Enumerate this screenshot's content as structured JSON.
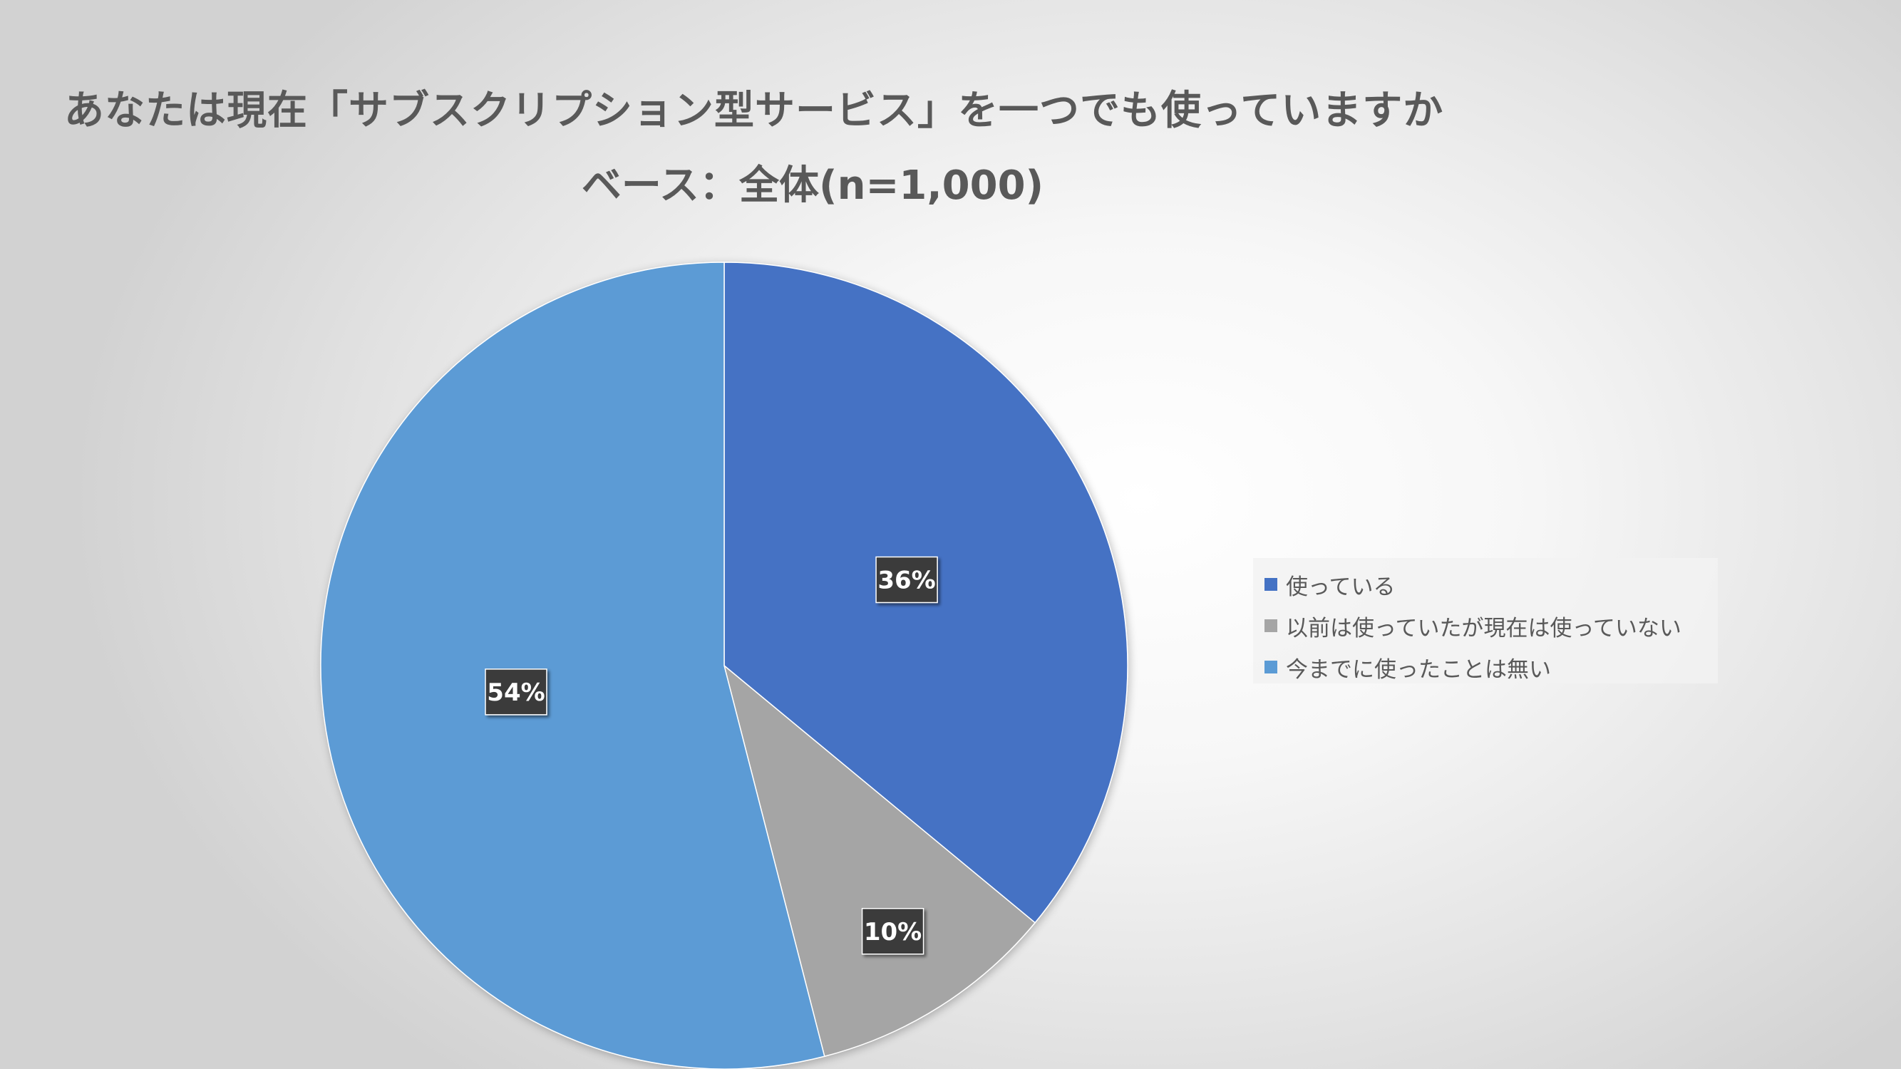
{
  "chart_data": {
    "type": "pie",
    "title": "あなたは現在「サブスクリプション型サービス」を一つでも使っていますか",
    "subtitle": "ベース：全体(n=1,000)",
    "categories": [
      "使っている",
      "以前は使っていたが現在は使っていない",
      "今までに使ったことは無い"
    ],
    "values": [
      36,
      10,
      54
    ],
    "data_labels": [
      "36%",
      "10%",
      "54%"
    ],
    "colors": [
      "#4472C4",
      "#A5A5A5",
      "#5B9BD5"
    ],
    "legend_position": "right",
    "start_angle_deg": 0,
    "direction": "clockwise"
  }
}
